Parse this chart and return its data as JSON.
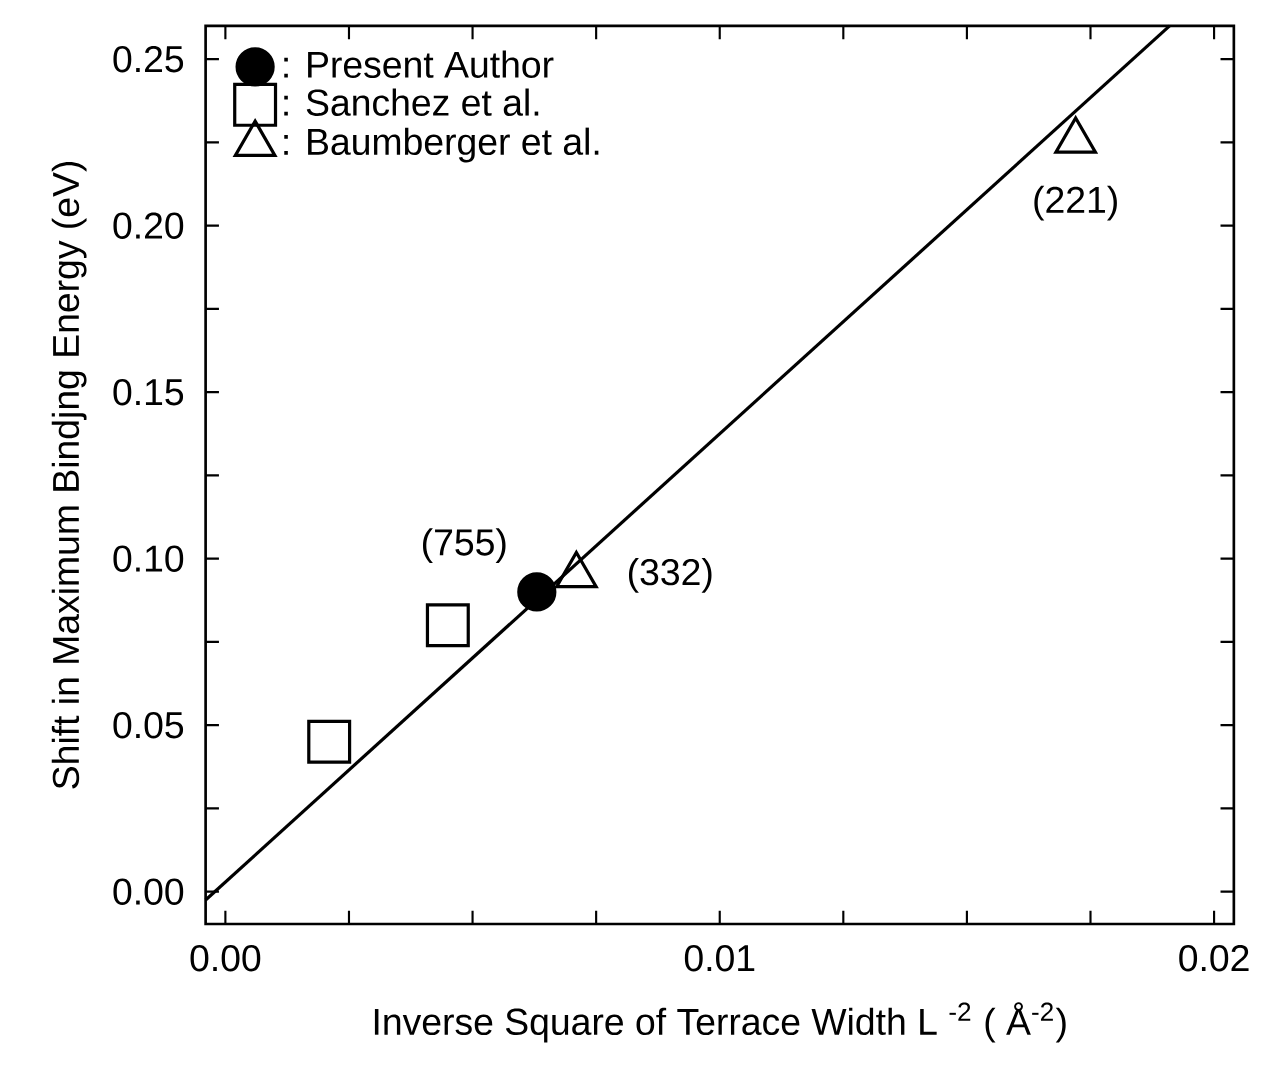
{
  "chart_data": {
    "type": "scatter",
    "xlabel": "Inverse Square of Terrace Width L $^{-2}$ ( Å$^{-2}$)",
    "ylabel": "Shift in Maximum Bindjng Energy (eV)",
    "xlim": [
      -0.0004,
      0.0204
    ],
    "ylim": [
      -0.0097,
      0.26
    ],
    "xticks": [
      {
        "value": 0,
        "label": "0.00"
      },
      {
        "value": 0.0025,
        "label": null
      },
      {
        "value": 0.005,
        "label": null
      },
      {
        "value": 0.0075,
        "label": null
      },
      {
        "value": 0.01,
        "label": "0.01"
      },
      {
        "value": 0.0125,
        "label": null
      },
      {
        "value": 0.015,
        "label": null
      },
      {
        "value": 0.0175,
        "label": null
      },
      {
        "value": 0.02,
        "label": "0.02"
      }
    ],
    "yticks": [
      {
        "value": 0,
        "label": "0.00"
      },
      {
        "value": 0.025,
        "label": null
      },
      {
        "value": 0.05,
        "label": "0.05"
      },
      {
        "value": 0.075,
        "label": null
      },
      {
        "value": 0.1,
        "label": "0.10"
      },
      {
        "value": 0.125,
        "label": null
      },
      {
        "value": 0.15,
        "label": "0.15"
      },
      {
        "value": 0.175,
        "label": null
      },
      {
        "value": 0.2,
        "label": "0.20"
      },
      {
        "value": 0.225,
        "label": null
      },
      {
        "value": 0.25,
        "label": "0.25"
      }
    ],
    "legend": "top left",
    "series": [
      {
        "name": ":  Present Author",
        "color": "#000000",
        "marker": "circle",
        "x": [
          0.0063
        ],
        "values": [
          0.09
        ]
      },
      {
        "name": ":  Sanchez et al.",
        "color": "#000000",
        "marker": "square",
        "x": [
          0.0021,
          0.0045
        ],
        "values": [
          0.045,
          0.08
        ]
      },
      {
        "name": ":  Baumberger et al.",
        "color": "#000000",
        "marker": "triangle",
        "x": [
          0.0071,
          0.0172
        ],
        "values": [
          0.095,
          0.2255
        ]
      },
      {
        "type": "line",
        "color": "#000000",
        "marker": "none",
        "x": [
          -0.0004,
          0.0191
        ],
        "values": [
          -0.0025,
          0.26
        ]
      }
    ],
    "annotations": [
      {
        "text": "(755)",
        "x": 0.0063,
        "y": 0.09
      },
      {
        "text": "(332)",
        "x": 0.0071,
        "y": 0.095
      },
      {
        "text": "(221)",
        "x": 0.0172,
        "y": 0.2255
      }
    ]
  }
}
